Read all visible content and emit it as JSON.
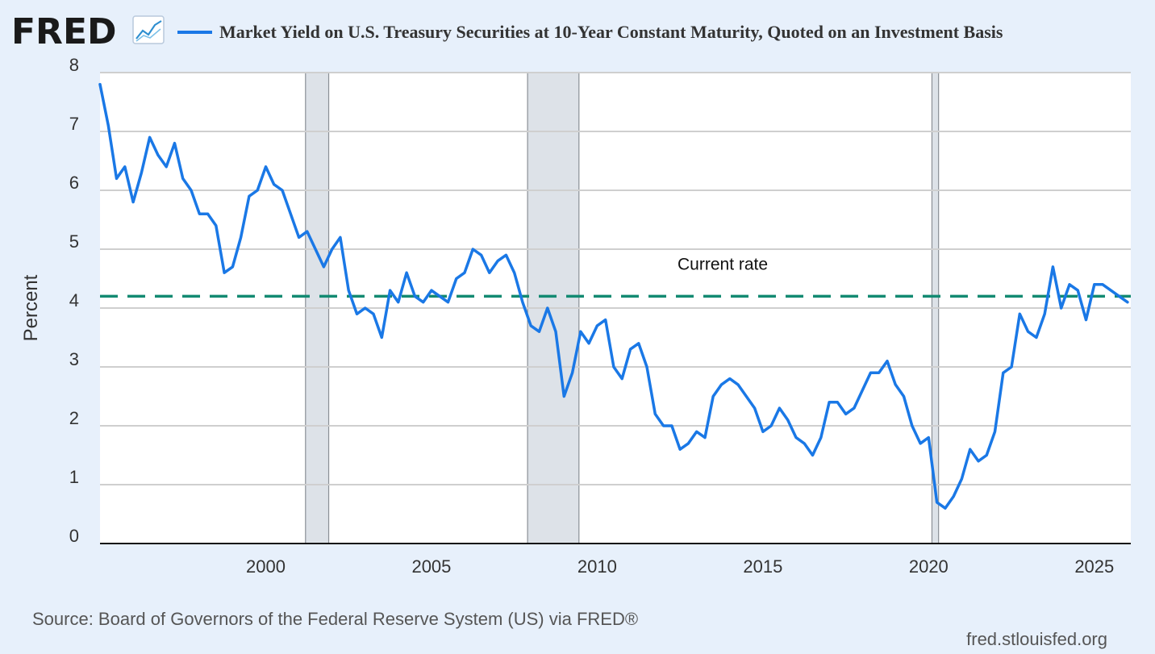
{
  "header": {
    "logo_text": "FRED",
    "logo_icon": "chart-trend-icon",
    "legend_label": "Market Yield on U.S. Treasury Securities at 10-Year Constant Maturity, Quoted on an Investment Basis"
  },
  "footer": {
    "source": "Source: Board of Governors of the Federal Reserve System (US) via FRED®",
    "site": "fred.stlouisfed.org"
  },
  "colors": {
    "background": "#e7f0fb",
    "plot_background": "#ffffff",
    "series": "#1a78e6",
    "recession": "#dde2e8",
    "reference_line": "#138a72",
    "grid": "#cfcfcf"
  },
  "chart_data": {
    "type": "line",
    "ylabel": "Percent",
    "xlabel": "",
    "ylim": [
      0,
      8
    ],
    "y_ticks": [
      0,
      1,
      2,
      3,
      4,
      5,
      6,
      7,
      8
    ],
    "xlim": [
      1995.0,
      2026.1
    ],
    "x_ticks": [
      2000,
      2005,
      2010,
      2015,
      2020,
      2025
    ],
    "grid": true,
    "recessions": [
      [
        2001.2,
        2001.9
      ],
      [
        2007.9,
        2009.45
      ],
      [
        2020.1,
        2020.3
      ]
    ],
    "reference_line": {
      "label": "Current rate",
      "value": 4.2,
      "style": "dashed"
    },
    "series": [
      {
        "x": [
          1995.0,
          1995.25,
          1995.5,
          1995.75,
          1996.0,
          1996.25,
          1996.5,
          1996.75,
          1997.0,
          1997.25,
          1997.5,
          1997.75,
          1998.0,
          1998.25,
          1998.5,
          1998.75,
          1999.0,
          1999.25,
          1999.5,
          1999.75,
          2000.0,
          2000.25,
          2000.5,
          2000.75,
          2001.0,
          2001.25,
          2001.5,
          2001.75,
          2002.0,
          2002.25,
          2002.5,
          2002.75,
          2003.0,
          2003.25,
          2003.5,
          2003.75,
          2004.0,
          2004.25,
          2004.5,
          2004.75,
          2005.0,
          2005.25,
          2005.5,
          2005.75,
          2006.0,
          2006.25,
          2006.5,
          2006.75,
          2007.0,
          2007.25,
          2007.5,
          2007.75,
          2008.0,
          2008.25,
          2008.5,
          2008.75,
          2009.0,
          2009.25,
          2009.5,
          2009.75,
          2010.0,
          2010.25,
          2010.5,
          2010.75,
          2011.0,
          2011.25,
          2011.5,
          2011.75,
          2012.0,
          2012.25,
          2012.5,
          2012.75,
          2013.0,
          2013.25,
          2013.5,
          2013.75,
          2014.0,
          2014.25,
          2014.5,
          2014.75,
          2015.0,
          2015.25,
          2015.5,
          2015.75,
          2016.0,
          2016.25,
          2016.5,
          2016.75,
          2017.0,
          2017.25,
          2017.5,
          2017.75,
          2018.0,
          2018.25,
          2018.5,
          2018.75,
          2019.0,
          2019.25,
          2019.5,
          2019.75,
          2020.0,
          2020.25,
          2020.5,
          2020.75,
          2021.0,
          2021.25,
          2021.5,
          2021.75,
          2022.0,
          2022.25,
          2022.5,
          2022.75,
          2023.0,
          2023.25,
          2023.5,
          2023.75,
          2024.0,
          2024.25,
          2024.5,
          2024.75,
          2025.0,
          2025.25,
          2025.5,
          2025.75,
          2026.0
        ],
        "values": [
          7.8,
          7.1,
          6.2,
          6.4,
          5.8,
          6.3,
          6.9,
          6.6,
          6.4,
          6.8,
          6.2,
          6.0,
          5.6,
          5.6,
          5.4,
          4.6,
          4.7,
          5.2,
          5.9,
          6.0,
          6.4,
          6.1,
          6.0,
          5.6,
          5.2,
          5.3,
          5.0,
          4.7,
          5.0,
          5.2,
          4.3,
          3.9,
          4.0,
          3.9,
          3.5,
          4.3,
          4.1,
          4.6,
          4.2,
          4.1,
          4.3,
          4.2,
          4.1,
          4.5,
          4.6,
          5.0,
          4.9,
          4.6,
          4.8,
          4.9,
          4.6,
          4.1,
          3.7,
          3.6,
          4.0,
          3.6,
          2.5,
          2.9,
          3.6,
          3.4,
          3.7,
          3.8,
          3.0,
          2.8,
          3.3,
          3.4,
          3.0,
          2.2,
          2.0,
          2.0,
          1.6,
          1.7,
          1.9,
          1.8,
          2.5,
          2.7,
          2.8,
          2.7,
          2.5,
          2.3,
          1.9,
          2.0,
          2.3,
          2.1,
          1.8,
          1.7,
          1.5,
          1.8,
          2.4,
          2.4,
          2.2,
          2.3,
          2.6,
          2.9,
          2.9,
          3.1,
          2.7,
          2.5,
          2.0,
          1.7,
          1.8,
          0.7,
          0.6,
          0.8,
          1.1,
          1.6,
          1.4,
          1.5,
          1.9,
          2.9,
          3.0,
          3.9,
          3.6,
          3.5,
          3.9,
          4.7,
          4.0,
          4.4,
          4.3,
          3.8,
          4.4,
          4.4,
          4.3,
          4.2,
          4.1
        ]
      }
    ]
  }
}
